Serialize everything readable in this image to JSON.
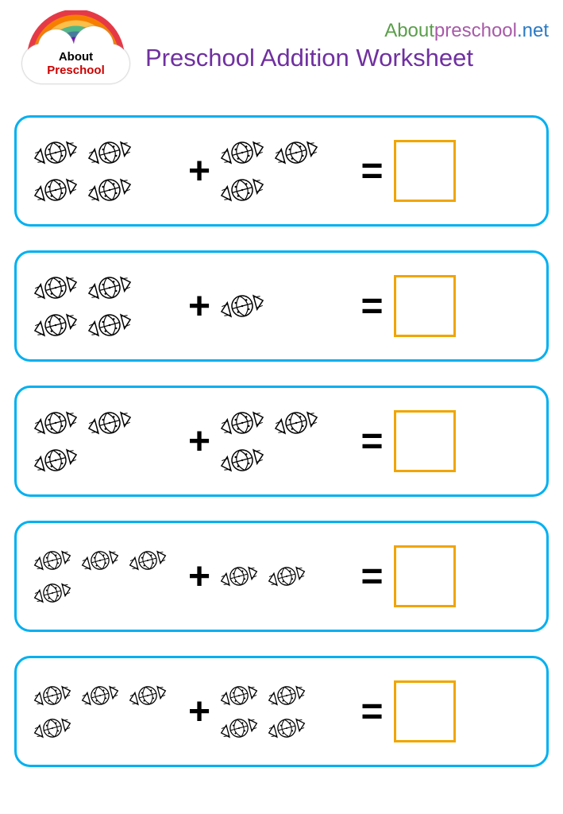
{
  "header": {
    "logo_about": "About",
    "logo_preschool": "Preschool",
    "url_part1": "About",
    "url_part2": "preschool",
    "url_part3": ".net",
    "url_color1": "#5a9e4a",
    "url_color2": "#a85aa8",
    "url_color3": "#2a7ac4",
    "title": "Preschool Addition Worksheet",
    "title_color": "#7030a0"
  },
  "styling": {
    "row_border_color": "#00b0f0",
    "answer_box_color": "#f0a500",
    "operator_plus": "+",
    "operator_equals": "=",
    "rainbow_colors": [
      "#e63946",
      "#f77f00",
      "#fcbf49",
      "#52b788",
      "#457b9d",
      "#7209b7",
      "#c77dff"
    ]
  },
  "problems": [
    {
      "left_count": 4,
      "right_count": 3,
      "left_size": "normal",
      "right_size": "normal"
    },
    {
      "left_count": 4,
      "right_count": 1,
      "left_size": "normal",
      "right_size": "normal"
    },
    {
      "left_count": 3,
      "right_count": 3,
      "left_size": "normal",
      "right_size": "normal"
    },
    {
      "left_count": 4,
      "right_count": 2,
      "left_size": "small",
      "right_size": "small"
    },
    {
      "left_count": 4,
      "right_count": 4,
      "left_size": "small",
      "right_size": "small"
    }
  ]
}
